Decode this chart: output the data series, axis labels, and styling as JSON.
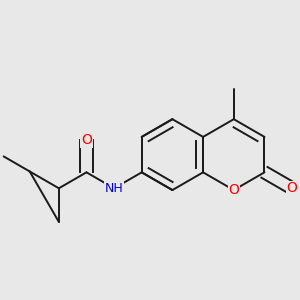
{
  "bg_color": "#e8e8e8",
  "bond_color": "#1a1a1a",
  "bond_width": 1.4,
  "atom_colors": {
    "O": "#ff0000",
    "N": "#0000cc",
    "C": "#1a1a1a"
  },
  "font_size": 10,
  "fig_size": [
    3.0,
    3.0
  ],
  "dpi": 100
}
